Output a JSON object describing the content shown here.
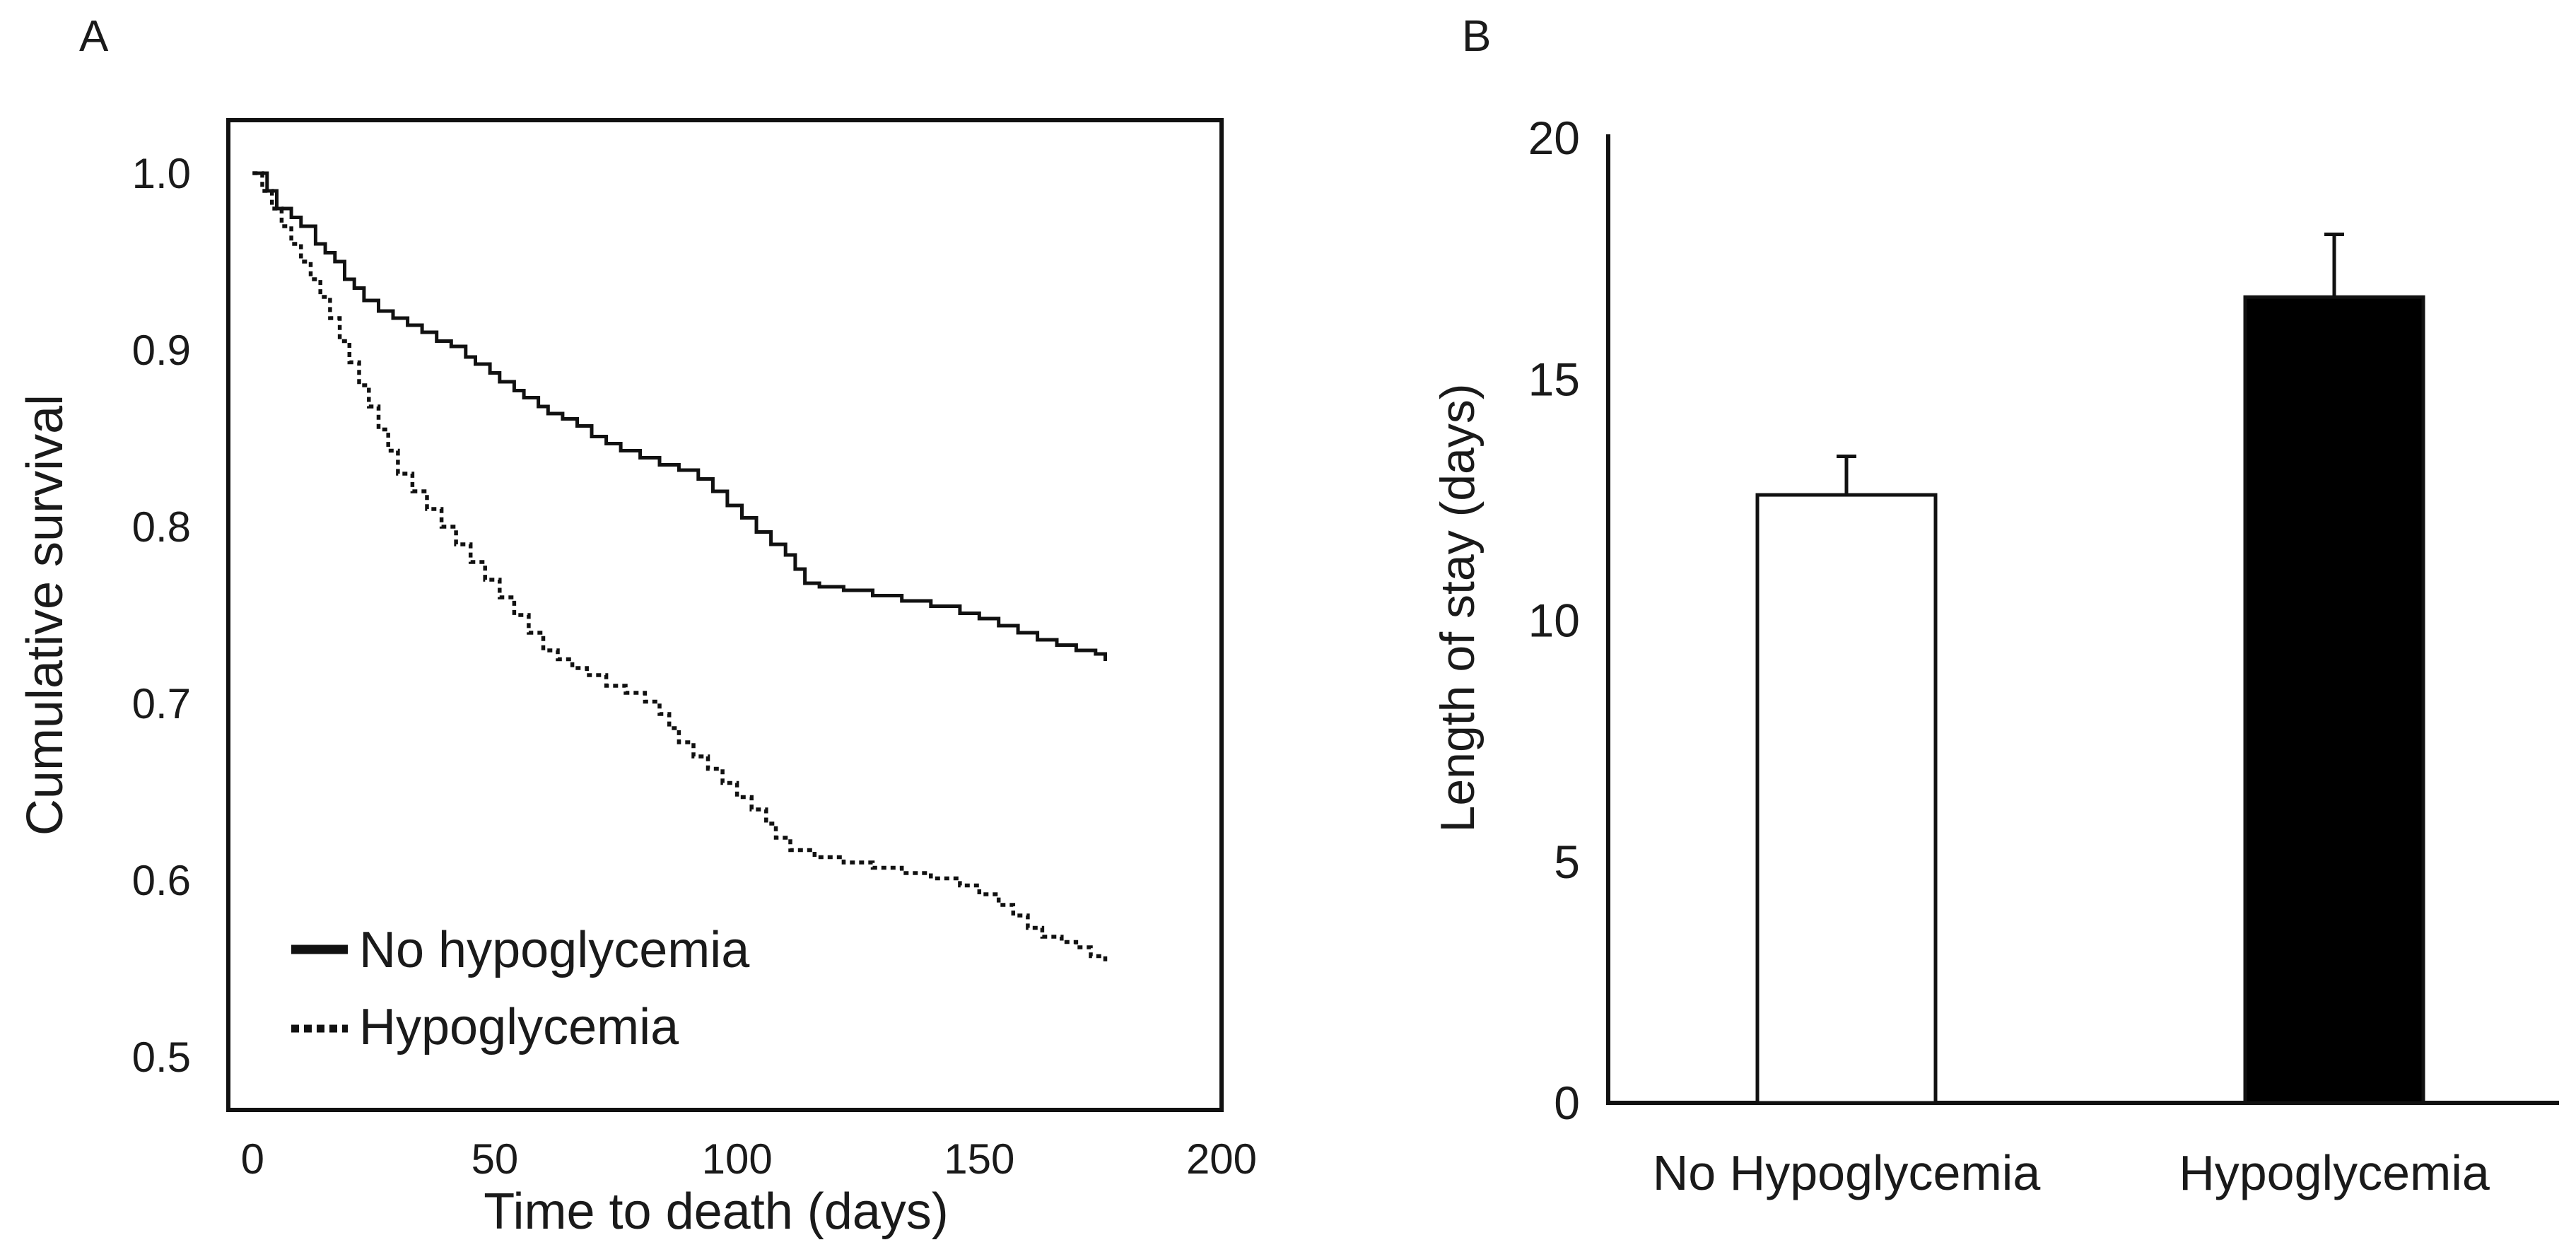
{
  "chart_data": [
    {
      "panel": "A",
      "type": "line",
      "subtype": "kaplan-meier-survival",
      "xlabel": "Time to death (days)",
      "ylabel": "Cumulative survival",
      "xlim": [
        -5,
        200
      ],
      "ylim": [
        0.47,
        1.03
      ],
      "xticks": [
        0,
        50,
        100,
        150,
        200
      ],
      "yticks": [
        0.5,
        0.6,
        0.7,
        0.8,
        0.9,
        1.0
      ],
      "ytick_labels": [
        "0.5",
        "0.6",
        "0.7",
        "0.8",
        "0.9",
        "1.0"
      ],
      "legend_position": "bottom-left",
      "series": [
        {
          "name": "No hypoglycemia",
          "style": "solid",
          "color": "#111111",
          "points": [
            [
              0,
              1.0
            ],
            [
              3,
              0.99
            ],
            [
              5,
              0.98
            ],
            [
              8,
              0.975
            ],
            [
              10,
              0.97
            ],
            [
              13,
              0.96
            ],
            [
              15,
              0.955
            ],
            [
              17,
              0.95
            ],
            [
              19,
              0.94
            ],
            [
              21,
              0.935
            ],
            [
              23,
              0.928
            ],
            [
              26,
              0.922
            ],
            [
              29,
              0.918
            ],
            [
              32,
              0.914
            ],
            [
              35,
              0.91
            ],
            [
              38,
              0.905
            ],
            [
              41,
              0.902
            ],
            [
              44,
              0.896
            ],
            [
              46,
              0.892
            ],
            [
              49,
              0.887
            ],
            [
              51,
              0.882
            ],
            [
              54,
              0.877
            ],
            [
              56,
              0.873
            ],
            [
              59,
              0.868
            ],
            [
              61,
              0.864
            ],
            [
              64,
              0.861
            ],
            [
              67,
              0.857
            ],
            [
              70,
              0.851
            ],
            [
              73,
              0.847
            ],
            [
              76,
              0.843
            ],
            [
              80,
              0.839
            ],
            [
              84,
              0.835
            ],
            [
              88,
              0.832
            ],
            [
              92,
              0.827
            ],
            [
              95,
              0.82
            ],
            [
              98,
              0.812
            ],
            [
              101,
              0.805
            ],
            [
              104,
              0.797
            ],
            [
              107,
              0.79
            ],
            [
              110,
              0.784
            ],
            [
              112,
              0.776
            ],
            [
              114,
              0.768
            ],
            [
              117,
              0.766
            ],
            [
              122,
              0.764
            ],
            [
              128,
              0.761
            ],
            [
              134,
              0.758
            ],
            [
              140,
              0.755
            ],
            [
              146,
              0.751
            ],
            [
              150,
              0.748
            ],
            [
              154,
              0.744
            ],
            [
              158,
              0.74
            ],
            [
              162,
              0.736
            ],
            [
              166,
              0.733
            ],
            [
              170,
              0.73
            ],
            [
              174,
              0.728
            ],
            [
              176,
              0.724
            ]
          ]
        },
        {
          "name": "Hypoglycemia",
          "style": "dotted",
          "color": "#111111",
          "points": [
            [
              0,
              1.0
            ],
            [
              2,
              0.99
            ],
            [
              4,
              0.98
            ],
            [
              6,
              0.97
            ],
            [
              8,
              0.96
            ],
            [
              10,
              0.95
            ],
            [
              12,
              0.94
            ],
            [
              14,
              0.93
            ],
            [
              16,
              0.918
            ],
            [
              18,
              0.905
            ],
            [
              20,
              0.893
            ],
            [
              22,
              0.88
            ],
            [
              24,
              0.868
            ],
            [
              26,
              0.855
            ],
            [
              28,
              0.843
            ],
            [
              30,
              0.83
            ],
            [
              33,
              0.82
            ],
            [
              36,
              0.81
            ],
            [
              39,
              0.8
            ],
            [
              42,
              0.79
            ],
            [
              45,
              0.78
            ],
            [
              48,
              0.77
            ],
            [
              51,
              0.76
            ],
            [
              54,
              0.75
            ],
            [
              57,
              0.74
            ],
            [
              60,
              0.73
            ],
            [
              63,
              0.725
            ],
            [
              66,
              0.72
            ],
            [
              69,
              0.716
            ],
            [
              73,
              0.71
            ],
            [
              77,
              0.706
            ],
            [
              81,
              0.701
            ],
            [
              84,
              0.694
            ],
            [
              86,
              0.686
            ],
            [
              88,
              0.678
            ],
            [
              91,
              0.67
            ],
            [
              94,
              0.663
            ],
            [
              97,
              0.655
            ],
            [
              100,
              0.647
            ],
            [
              103,
              0.64
            ],
            [
              106,
              0.632
            ],
            [
              108,
              0.624
            ],
            [
              111,
              0.617
            ],
            [
              116,
              0.613
            ],
            [
              122,
              0.61
            ],
            [
              128,
              0.607
            ],
            [
              134,
              0.604
            ],
            [
              140,
              0.601
            ],
            [
              146,
              0.597
            ],
            [
              150,
              0.592
            ],
            [
              154,
              0.586
            ],
            [
              157,
              0.58
            ],
            [
              160,
              0.573
            ],
            [
              163,
              0.568
            ],
            [
              167,
              0.565
            ],
            [
              170,
              0.562
            ],
            [
              173,
              0.557
            ],
            [
              176,
              0.552
            ]
          ]
        }
      ]
    },
    {
      "panel": "B",
      "type": "bar",
      "categories": [
        "No Hypoglycemia",
        "Hypoglycemia"
      ],
      "values": [
        12.6,
        16.7
      ],
      "errors": [
        0.8,
        1.3
      ],
      "bar_colors": [
        "#ffffff",
        "#000000"
      ],
      "ylabel": "Length of stay (days)",
      "xlabel": "",
      "ylim": [
        0,
        20
      ],
      "yticks": [
        0,
        5,
        10,
        15,
        20
      ]
    }
  ]
}
